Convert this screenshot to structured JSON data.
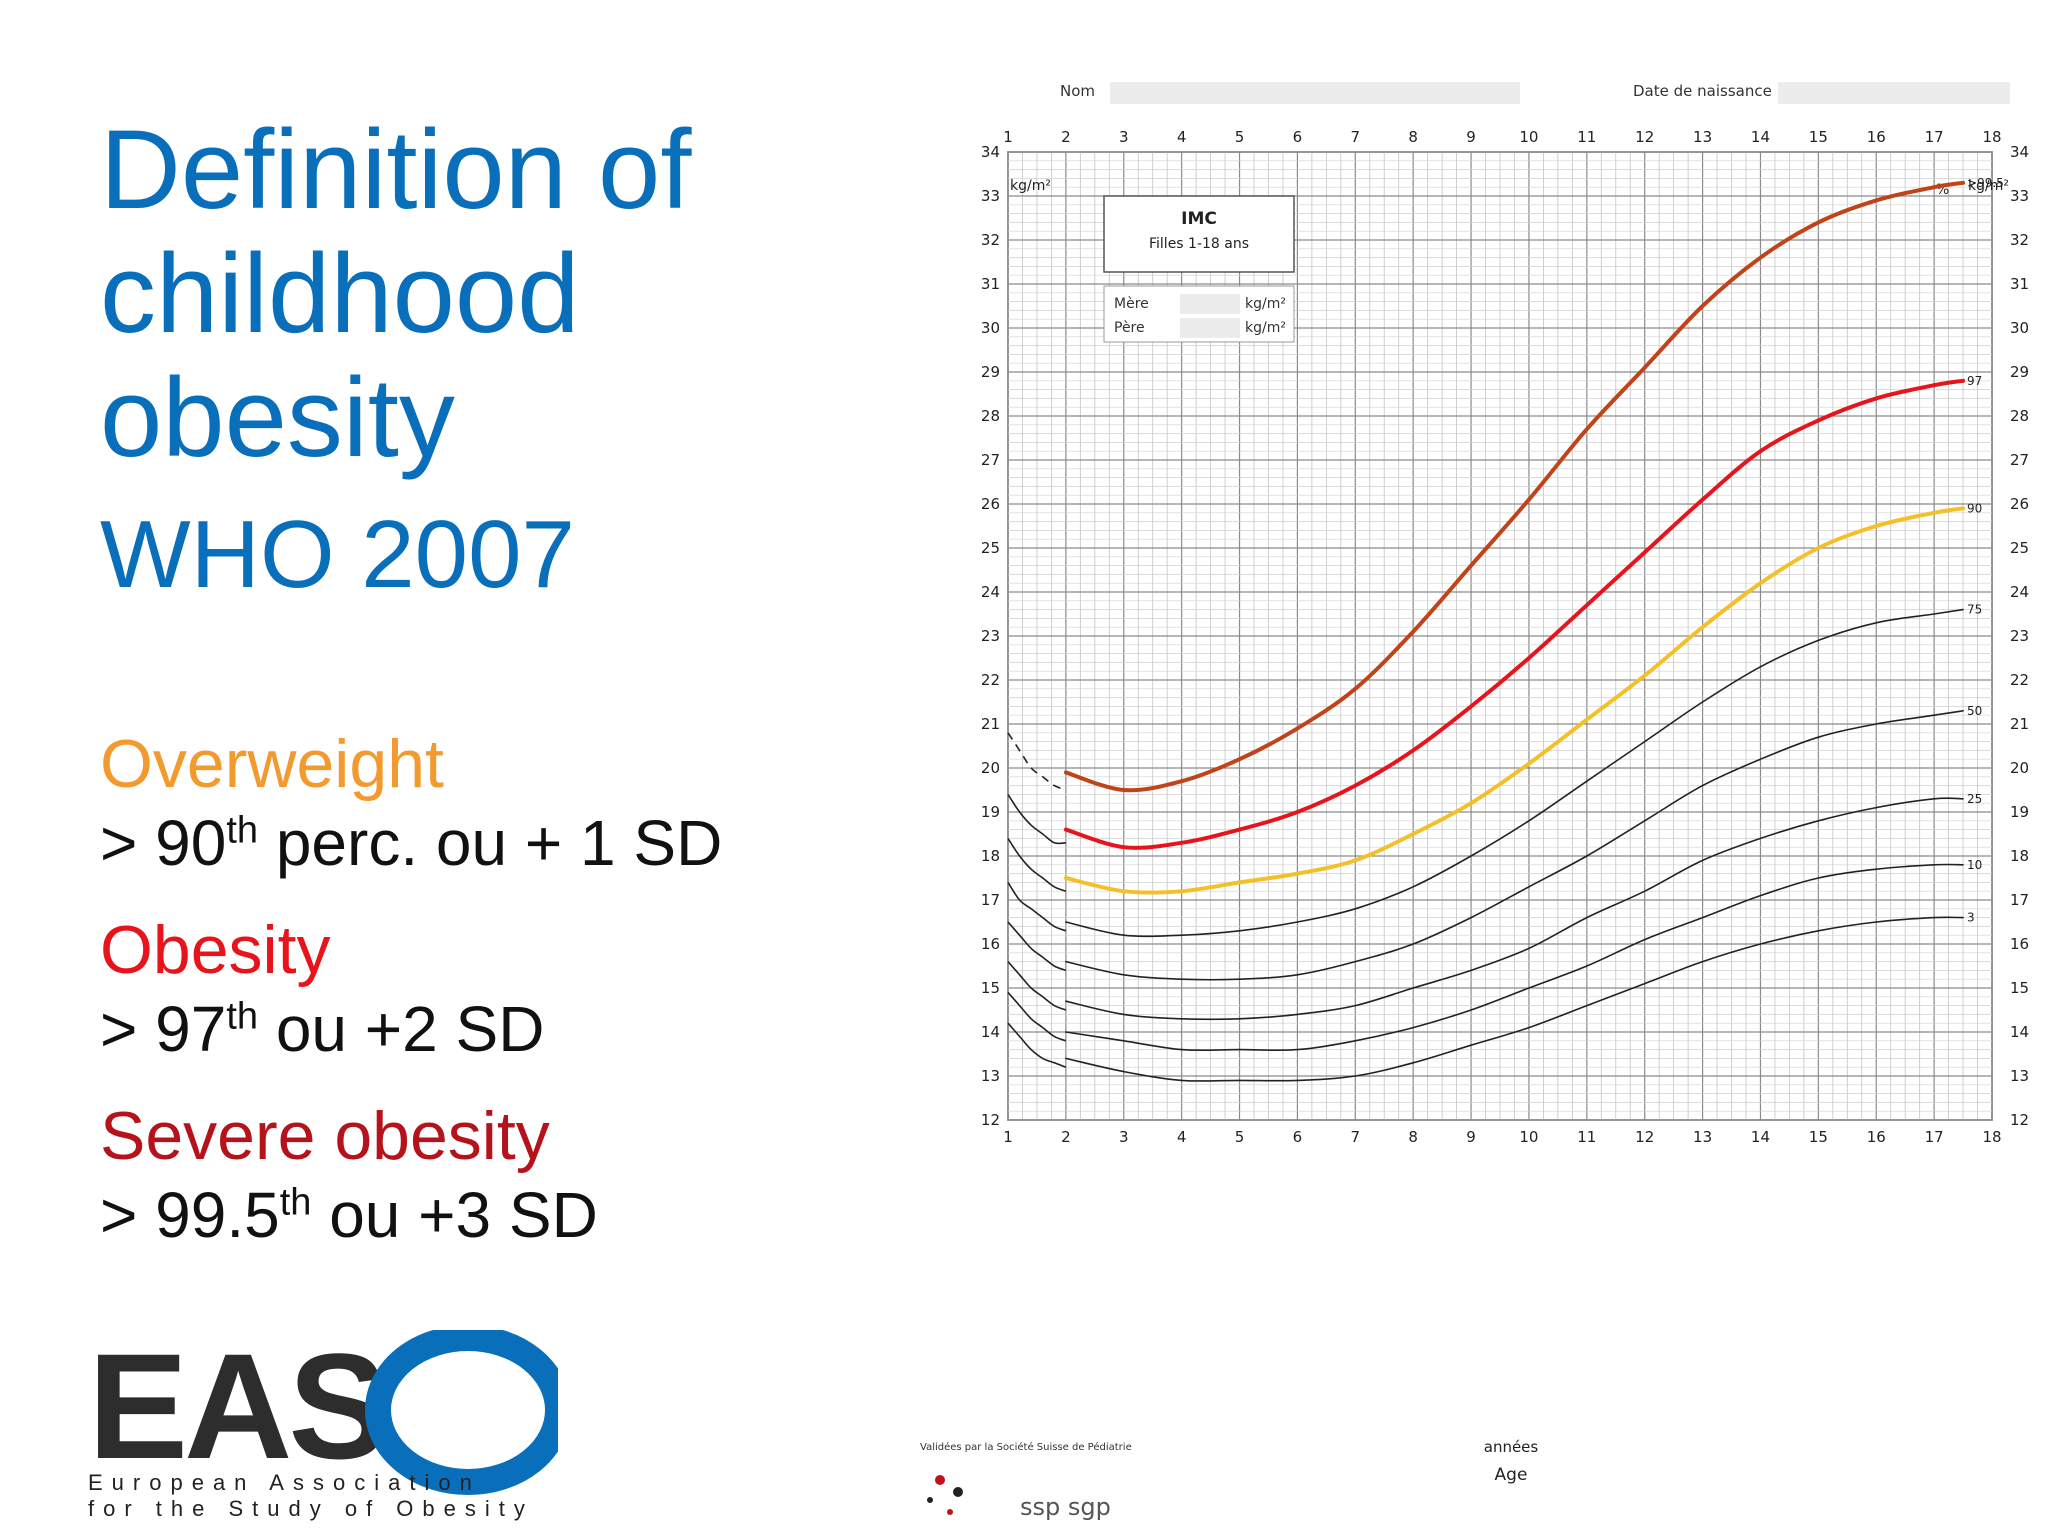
{
  "slide": {
    "title": "Definition of childhood obesity",
    "subtitle": "WHO 2007",
    "definitions": [
      {
        "name": "Overweight",
        "color": "#f39a2e",
        "rule_pre": "> 90",
        "rule_sup": "th",
        "rule_post": " perc. ou + 1 SD"
      },
      {
        "name": "Obesity",
        "color": "#e8141c",
        "rule_pre": "> 97",
        "rule_sup": "th",
        "rule_post": " ou +2 SD"
      },
      {
        "name": "Severe obesity",
        "color": "#b5121b",
        "rule_pre": "> 99.5",
        "rule_sup": "th",
        "rule_post": " ou +3 SD"
      }
    ]
  },
  "logo": {
    "letters": "EAS",
    "line1": "European Association",
    "line2": "for the Study of Obesity",
    "ring_color": "#0a6fba"
  },
  "chart_data": {
    "type": "line",
    "form_fields": [
      "Nom",
      "Date de naissance"
    ],
    "box_title": "IMC",
    "box_subtitle": "Filles 1-18 ans",
    "parents": [
      {
        "label": "Mère",
        "unit": "kg/m²"
      },
      {
        "label": "Père",
        "unit": "kg/m²"
      }
    ],
    "y_unit": "kg/m²",
    "percent_label": "%",
    "xlabel_fr": "années",
    "xlabel": "Age",
    "xlim": [
      1,
      18
    ],
    "ylim": [
      12,
      34
    ],
    "x_ticks": [
      1,
      2,
      3,
      4,
      5,
      6,
      7,
      8,
      9,
      10,
      11,
      12,
      13,
      14,
      15,
      16,
      17,
      18
    ],
    "y_ticks": [
      12,
      13,
      14,
      15,
      16,
      17,
      18,
      19,
      20,
      21,
      22,
      23,
      24,
      25,
      26,
      27,
      28,
      29,
      30,
      31,
      32,
      33,
      34
    ],
    "footer_left": "Validées par la Société Suisse de Pédiatrie",
    "footer_logo": "ssp sgp",
    "x": [
      2,
      3,
      4,
      5,
      6,
      7,
      8,
      9,
      10,
      11,
      12,
      13,
      14,
      15,
      16,
      17,
      17.5
    ],
    "series": [
      {
        "name": ">99.5",
        "color": "#c0431a",
        "width": 4,
        "values": [
          19.9,
          19.5,
          19.7,
          20.2,
          20.9,
          21.8,
          23.1,
          24.6,
          26.1,
          27.7,
          29.1,
          30.5,
          31.6,
          32.4,
          32.9,
          33.2,
          33.3
        ]
      },
      {
        "name": "97",
        "color": "#e8141c",
        "width": 4,
        "values": [
          18.6,
          18.2,
          18.3,
          18.6,
          19.0,
          19.6,
          20.4,
          21.4,
          22.5,
          23.7,
          24.9,
          26.1,
          27.2,
          27.9,
          28.4,
          28.7,
          28.8
        ]
      },
      {
        "name": "90",
        "color": "#f4c02a",
        "width": 4,
        "values": [
          17.5,
          17.2,
          17.2,
          17.4,
          17.6,
          17.9,
          18.5,
          19.2,
          20.1,
          21.1,
          22.1,
          23.2,
          24.2,
          25.0,
          25.5,
          25.8,
          25.9
        ]
      },
      {
        "name": "75",
        "color": "#222222",
        "width": 1.6,
        "values": [
          16.5,
          16.2,
          16.2,
          16.3,
          16.5,
          16.8,
          17.3,
          18.0,
          18.8,
          19.7,
          20.6,
          21.5,
          22.3,
          22.9,
          23.3,
          23.5,
          23.6
        ]
      },
      {
        "name": "50",
        "color": "#222222",
        "width": 1.6,
        "values": [
          15.6,
          15.3,
          15.2,
          15.2,
          15.3,
          15.6,
          16.0,
          16.6,
          17.3,
          18.0,
          18.8,
          19.6,
          20.2,
          20.7,
          21.0,
          21.2,
          21.3
        ]
      },
      {
        "name": "25",
        "color": "#222222",
        "width": 1.6,
        "values": [
          14.7,
          14.4,
          14.3,
          14.3,
          14.4,
          14.6,
          15.0,
          15.4,
          15.9,
          16.6,
          17.2,
          17.9,
          18.4,
          18.8,
          19.1,
          19.3,
          19.3
        ]
      },
      {
        "name": "10",
        "color": "#222222",
        "width": 1.6,
        "values": [
          14.0,
          13.8,
          13.6,
          13.6,
          13.6,
          13.8,
          14.1,
          14.5,
          15.0,
          15.5,
          16.1,
          16.6,
          17.1,
          17.5,
          17.7,
          17.8,
          17.8
        ]
      },
      {
        "name": "3",
        "color": "#222222",
        "width": 1.6,
        "values": [
          13.4,
          13.1,
          12.9,
          12.9,
          12.9,
          13.0,
          13.3,
          13.7,
          14.1,
          14.6,
          15.1,
          15.6,
          16.0,
          16.3,
          16.5,
          16.6,
          16.6
        ]
      }
    ],
    "infant_x": [
      1,
      1.2,
      1.4,
      1.6,
      1.8,
      2
    ],
    "infant_series": [
      {
        "name": ">99.5",
        "values": [
          20.8,
          20.4,
          20.0,
          19.8,
          19.6,
          19.5
        ],
        "dashed": true
      },
      {
        "name": "97",
        "values": [
          19.4,
          19.0,
          18.7,
          18.5,
          18.3,
          18.3
        ]
      },
      {
        "name": "90",
        "values": [
          18.4,
          18.0,
          17.7,
          17.5,
          17.3,
          17.2
        ]
      },
      {
        "name": "75",
        "values": [
          17.4,
          17.0,
          16.8,
          16.6,
          16.4,
          16.3
        ]
      },
      {
        "name": "50",
        "values": [
          16.5,
          16.2,
          15.9,
          15.7,
          15.5,
          15.4
        ]
      },
      {
        "name": "25",
        "values": [
          15.6,
          15.3,
          15.0,
          14.8,
          14.6,
          14.5
        ]
      },
      {
        "name": "10",
        "values": [
          14.9,
          14.6,
          14.3,
          14.1,
          13.9,
          13.8
        ]
      },
      {
        "name": "3",
        "values": [
          14.2,
          13.9,
          13.6,
          13.4,
          13.3,
          13.2
        ]
      }
    ]
  }
}
